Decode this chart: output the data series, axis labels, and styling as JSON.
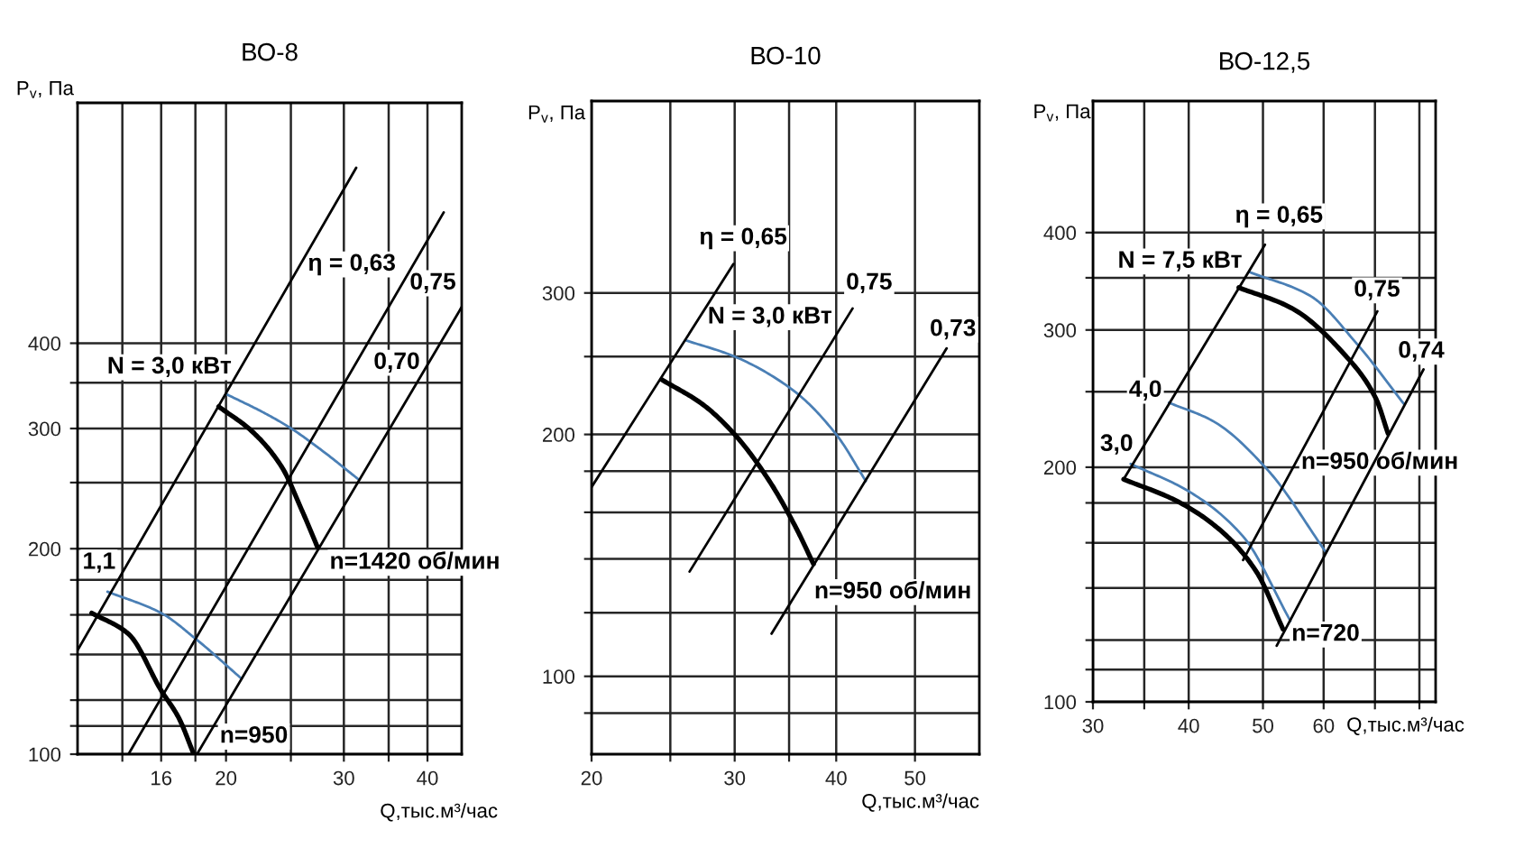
{
  "chart_data": [
    {
      "type": "line",
      "title": "ВО-8",
      "xlabel": "Q,тыс.м³/час",
      "ylabel": "P$_{v}$, Па",
      "log": "xy",
      "grid": true,
      "xlim": [
        12,
        45
      ],
      "xticks": [
        {
          "value": 14,
          "label": null
        },
        16,
        {
          "value": 18,
          "label": null
        },
        20,
        {
          "value": 25,
          "label": null
        },
        30,
        {
          "value": 35,
          "label": null
        },
        40
      ],
      "ylim": [
        100,
        900
      ],
      "yticks": [
        100,
        {
          "value": 110,
          "label": null
        },
        {
          "value": 120,
          "label": null
        },
        {
          "value": 140,
          "label": null
        },
        {
          "value": 160,
          "label": null
        },
        {
          "value": 180,
          "label": null
        },
        200,
        {
          "value": 250,
          "label": null
        },
        300,
        {
          "value": 350,
          "label": null
        },
        400
      ],
      "series": [
        {
          "color": "#000000",
          "x": [
            19.5,
            21.8,
            24.2,
            26.0,
            27.4
          ],
          "values": [
            323,
            298,
            264,
            227,
            201
          ]
        },
        {
          "color": "#4a7fb5",
          "x": [
            20.0,
            22.7,
            24.9,
            27.9,
            31.5
          ],
          "values": [
            337,
            317,
            301,
            278,
            253
          ]
        },
        {
          "color": "#000000",
          "x": [
            12.6,
            14.3,
            16.0,
            17.0,
            17.9
          ],
          "values": [
            161,
            150,
            124,
            113,
            100
          ]
        },
        {
          "color": "#4a7fb5",
          "x": [
            13.3,
            16.0,
            18.1,
            21.1
          ],
          "values": [
            173,
            161,
            147,
            129
          ]
        },
        {
          "color": "#000000",
          "x": [
            12,
            31.3
          ],
          "values": [
            142,
            723
          ]
        },
        {
          "color": "#000000",
          "x": [
            14.3,
            42.3
          ],
          "values": [
            100,
            622
          ]
        },
        {
          "color": "#000000",
          "x": [
            18.1,
            45
          ],
          "values": [
            100,
            452
          ]
        }
      ],
      "annotations": [
        "η = 0,63",
        "0,75",
        "0,70",
        "N = 3,0 кВт",
        "n=1420 об/мин",
        "1,1",
        "n=950"
      ]
    },
    {
      "type": "line",
      "title": "ВО-10",
      "xlabel": "Q,тыс.м³/час",
      "ylabel": "P$_{v}$, Па",
      "log": "xy",
      "grid": true,
      "xlim": [
        20,
        60
      ],
      "xticks": [
        20,
        {
          "value": 25,
          "label": null
        },
        30,
        {
          "value": 35,
          "label": null
        },
        40,
        50
      ],
      "ylim": [
        80,
        520
      ],
      "yticks": [
        {
          "value": 90,
          "label": null
        },
        100,
        {
          "value": 120,
          "label": null
        },
        {
          "value": 140,
          "label": null
        },
        {
          "value": 160,
          "label": null
        },
        {
          "value": 180,
          "label": null
        },
        200,
        {
          "value": 250,
          "label": null
        },
        300
      ],
      "series": [
        {
          "color": "#000000",
          "x": [
            24.4,
            27.4,
            30.0,
            33.1,
            35.7,
            37.5
          ],
          "values": [
            234,
            218,
            200,
            175,
            153,
            138
          ]
        },
        {
          "color": "#4a7fb5",
          "x": [
            26.1,
            30.0,
            35.4,
            40.0,
            43.5
          ],
          "values": [
            262,
            250,
            227,
            200,
            175
          ]
        },
        {
          "color": "#000000",
          "x": [
            20,
            29.9
          ],
          "values": [
            172,
            326
          ]
        },
        {
          "color": "#000000",
          "x": [
            26.4,
            41.9
          ],
          "values": [
            135,
            287
          ]
        },
        {
          "color": "#000000",
          "x": [
            33.3,
            54.7
          ],
          "values": [
            113,
            256
          ]
        }
      ],
      "annotations": [
        "η = 0,65",
        "0,75",
        "0,73",
        "N = 3,0 кВт",
        "n=950 об/мин"
      ]
    },
    {
      "type": "line",
      "title": "ВО-12,5",
      "xlabel": "Q,тыс.м³/час",
      "ylabel": "P$_{v}$, Па",
      "log": "xy",
      "grid": true,
      "xlim": [
        30,
        84
      ],
      "xticks": [
        30,
        {
          "value": 35,
          "label": null
        },
        40,
        50,
        60,
        {
          "value": 70,
          "label": null
        },
        {
          "value": 80,
          "label": null
        }
      ],
      "ylim": [
        100,
        590
      ],
      "yticks": [
        100,
        {
          "value": 110,
          "label": null
        },
        {
          "value": 120,
          "label": null
        },
        {
          "value": 140,
          "label": null
        },
        {
          "value": 160,
          "label": null
        },
        {
          "value": 180,
          "label": null
        },
        200,
        {
          "value": 250,
          "label": null
        },
        300,
        {
          "value": 350,
          "label": null
        },
        400
      ],
      "series": [
        {
          "color": "#000000",
          "x": [
            46.5,
            54.5,
            64.1,
            70.2,
            72.8
          ],
          "values": [
            340,
            320,
            278,
            245,
            221
          ]
        },
        {
          "color": "#4a7fb5",
          "x": [
            48.0,
            57.6,
            66.3,
            76.4
          ],
          "values": [
            356,
            332,
            288,
            241
          ]
        },
        {
          "color": "#000000",
          "x": [
            32.9,
            38.6,
            44.0,
            49.0,
            53.1
          ],
          "values": [
            193,
            181,
            166,
            147,
            124
          ]
        },
        {
          "color": "#4a7fb5",
          "x": [
            33.6,
            40.1,
            47.1,
            54.3
          ],
          "values": [
            202,
            186,
            163,
            127
          ]
        },
        {
          "color": "#4a7fb5",
          "x": [
            37.7,
            43.1,
            50.8,
            60.3
          ],
          "values": [
            242,
            229,
            198,
            156
          ]
        },
        {
          "color": "#000000",
          "x": [
            32.9,
            50.3
          ],
          "values": [
            193,
            386
          ]
        },
        {
          "color": "#000000",
          "x": [
            47.1,
            70.5
          ],
          "values": [
            152,
            317
          ]
        },
        {
          "color": "#000000",
          "x": [
            52.1,
            81.0
          ],
          "values": [
            118,
            267
          ]
        }
      ],
      "annotations": [
        "η = 0,65",
        "N = 7,5 кВт",
        "0,75",
        "0,74",
        "4,0",
        "3,0",
        "n=950 об/мин",
        "n=720"
      ]
    }
  ]
}
